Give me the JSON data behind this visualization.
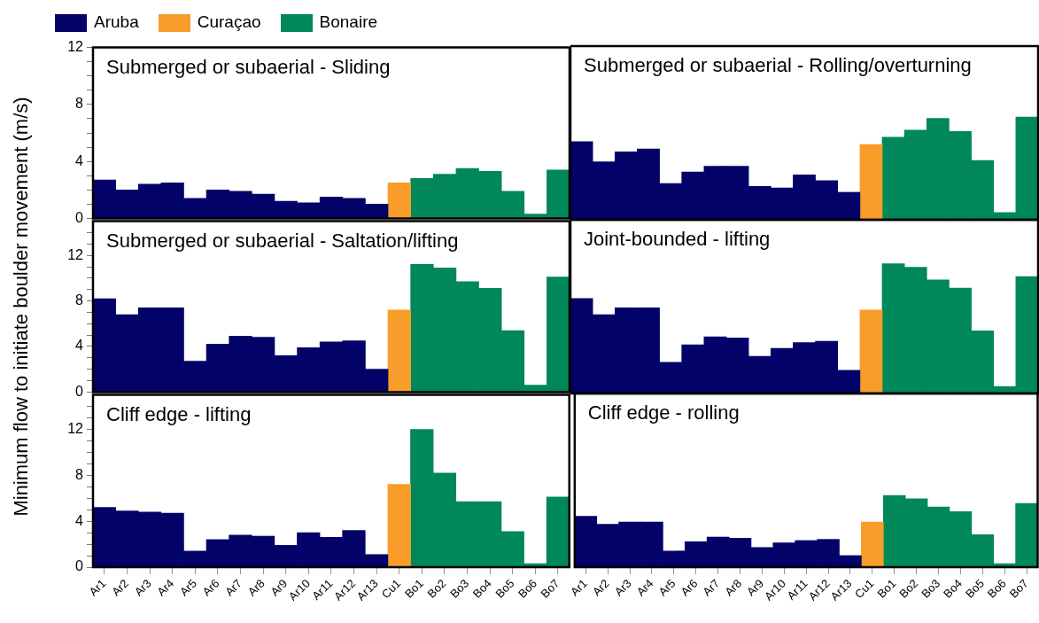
{
  "chart_data": [
    {
      "type": "bar",
      "title": "Submerged or subaerial - Sliding",
      "legend": "top left",
      "tick_labels": "y",
      "categories": [
        "Ar1",
        "Ar2",
        "Ar3",
        "Ar4",
        "Ar5",
        "Ar6",
        "Ar7",
        "Ar8",
        "Ar9",
        "Ar10",
        "Ar11",
        "Ar12",
        "Ar13",
        "Cu1",
        "Bo1",
        "Bo2",
        "Bo3",
        "Bo4",
        "Bo5",
        "Bo6",
        "Bo7"
      ],
      "ylim": [
        0,
        12
      ],
      "yticks": [
        0,
        {
          "value": 1,
          "label": null
        },
        {
          "value": 2,
          "label": null
        },
        {
          "value": 3,
          "label": null
        },
        4,
        {
          "value": 5,
          "label": null
        },
        {
          "value": 6,
          "label": null
        },
        {
          "value": 7,
          "label": null
        },
        8,
        {
          "value": 9,
          "label": null
        },
        {
          "value": 10,
          "label": null
        },
        {
          "value": 11,
          "label": null
        },
        12
      ],
      "series": [
        {
          "name": "Aruba",
          "color": "#020268",
          "values": [
            2.7,
            2.0,
            2.4,
            2.5,
            1.4,
            2.0,
            1.9,
            1.7,
            1.2,
            1.1,
            1.5,
            1.4,
            1.0,
            null,
            null,
            null,
            null,
            null,
            null,
            null,
            null
          ]
        },
        {
          "name": "Curaçao",
          "color": "#f99d2a",
          "values": [
            null,
            null,
            null,
            null,
            null,
            null,
            null,
            null,
            null,
            null,
            null,
            null,
            null,
            2.5,
            null,
            null,
            null,
            null,
            null,
            null,
            null
          ]
        },
        {
          "name": "Bonaire",
          "color": "#00875a",
          "values": [
            null,
            null,
            null,
            null,
            null,
            null,
            null,
            null,
            null,
            null,
            null,
            null,
            null,
            null,
            2.8,
            3.1,
            3.5,
            3.3,
            1.9,
            0.3,
            3.4
          ]
        }
      ]
    },
    {
      "type": "bar",
      "title": "Submerged or subaerial - Rolling/overturning",
      "tick_labels": false,
      "categories": [
        "Ar1",
        "Ar2",
        "Ar3",
        "Ar4",
        "Ar5",
        "Ar6",
        "Ar7",
        "Ar8",
        "Ar9",
        "Ar10",
        "Ar11",
        "Ar12",
        "Ar13",
        "Cu1",
        "Bo1",
        "Bo2",
        "Bo3",
        "Bo4",
        "Bo5",
        "Bo6",
        "Bo7"
      ],
      "ylim": [
        0,
        12
      ],
      "series": [
        {
          "name": "Aruba",
          "color": "#020268",
          "values": [
            5.4,
            4.0,
            4.7,
            4.9,
            2.5,
            3.3,
            3.7,
            3.7,
            2.3,
            2.2,
            3.1,
            2.7,
            1.9,
            null,
            null,
            null,
            null,
            null,
            null,
            null,
            null
          ]
        },
        {
          "name": "Curaçao",
          "color": "#f99d2a",
          "values": [
            null,
            null,
            null,
            null,
            null,
            null,
            null,
            null,
            null,
            null,
            null,
            null,
            null,
            5.2,
            null,
            null,
            null,
            null,
            null,
            null,
            null
          ]
        },
        {
          "name": "Bonaire",
          "color": "#00875a",
          "values": [
            null,
            null,
            null,
            null,
            null,
            null,
            null,
            null,
            null,
            null,
            null,
            null,
            null,
            null,
            5.7,
            6.2,
            7.0,
            6.1,
            4.1,
            0.5,
            7.1
          ]
        }
      ]
    },
    {
      "type": "bar",
      "title": "Submerged or subaerial - Saltation/lifting",
      "ylabel": "Minimum flow to initiate boulder movement (m/s)",
      "tick_labels": "y",
      "categories": [
        "Ar1",
        "Ar2",
        "Ar3",
        "Ar4",
        "Ar5",
        "Ar6",
        "Ar7",
        "Ar8",
        "Ar9",
        "Ar10",
        "Ar11",
        "Ar12",
        "Ar13",
        "Cu1",
        "Bo1",
        "Bo2",
        "Bo3",
        "Bo4",
        "Bo5",
        "Bo6",
        "Bo7"
      ],
      "ylim": [
        0,
        15
      ],
      "yticks": [
        0,
        {
          "value": 1,
          "label": null
        },
        {
          "value": 2,
          "label": null
        },
        {
          "value": 3,
          "label": null
        },
        4,
        {
          "value": 5,
          "label": null
        },
        {
          "value": 6,
          "label": null
        },
        {
          "value": 7,
          "label": null
        },
        8,
        {
          "value": 9,
          "label": null
        },
        {
          "value": 10,
          "label": null
        },
        {
          "value": 11,
          "label": null
        },
        12,
        {
          "value": 13,
          "label": null
        },
        {
          "value": 14,
          "label": null
        }
      ],
      "series": [
        {
          "name": "Aruba",
          "color": "#020268",
          "values": [
            8.2,
            6.8,
            7.4,
            7.4,
            2.7,
            4.2,
            4.9,
            4.8,
            3.2,
            3.9,
            4.4,
            4.5,
            2.0,
            null,
            null,
            null,
            null,
            null,
            null,
            null,
            null
          ]
        },
        {
          "name": "Curaçao",
          "color": "#f99d2a",
          "values": [
            null,
            null,
            null,
            null,
            null,
            null,
            null,
            null,
            null,
            null,
            null,
            null,
            null,
            7.2,
            null,
            null,
            null,
            null,
            null,
            null,
            null
          ]
        },
        {
          "name": "Bonaire",
          "color": "#00875a",
          "values": [
            null,
            null,
            null,
            null,
            null,
            null,
            null,
            null,
            null,
            null,
            null,
            null,
            null,
            null,
            11.2,
            10.9,
            9.7,
            9.1,
            5.4,
            0.6,
            10.1
          ]
        }
      ]
    },
    {
      "type": "bar",
      "title": "Joint-bounded - lifting",
      "tick_labels": false,
      "categories": [
        "Ar1",
        "Ar2",
        "Ar3",
        "Ar4",
        "Ar5",
        "Ar6",
        "Ar7",
        "Ar8",
        "Ar9",
        "Ar10",
        "Ar11",
        "Ar12",
        "Ar13",
        "Cu1",
        "Bo1",
        "Bo2",
        "Bo3",
        "Bo4",
        "Bo5",
        "Bo6",
        "Bo7"
      ],
      "ylim": [
        0,
        15
      ],
      "series": [
        {
          "name": "Aruba",
          "color": "#020268",
          "values": [
            8.2,
            6.8,
            7.4,
            7.4,
            2.7,
            4.2,
            4.9,
            4.8,
            3.2,
            3.9,
            4.4,
            4.5,
            2.0,
            null,
            null,
            null,
            null,
            null,
            null,
            null,
            null
          ]
        },
        {
          "name": "Curaçao",
          "color": "#f99d2a",
          "values": [
            null,
            null,
            null,
            null,
            null,
            null,
            null,
            null,
            null,
            null,
            null,
            null,
            null,
            7.2,
            null,
            null,
            null,
            null,
            null,
            null,
            null
          ]
        },
        {
          "name": "Bonaire",
          "color": "#00875a",
          "values": [
            null,
            null,
            null,
            null,
            null,
            null,
            null,
            null,
            null,
            null,
            null,
            null,
            null,
            null,
            11.2,
            10.9,
            9.8,
            9.1,
            5.4,
            0.6,
            10.1
          ]
        }
      ]
    },
    {
      "type": "bar",
      "title": "Cliff edge - lifting",
      "categories": [
        "Ar1",
        "Ar2",
        "Ar3",
        "Ar4",
        "Ar5",
        "Ar6",
        "Ar7",
        "Ar8",
        "Ar9",
        "Ar10",
        "Ar11",
        "Ar12",
        "Ar13",
        "Cu1",
        "Bo1",
        "Bo2",
        "Bo3",
        "Bo4",
        "Bo5",
        "Bo6",
        "Bo7"
      ],
      "ylim": [
        0,
        15
      ],
      "yticks": [
        0,
        {
          "value": 1,
          "label": null
        },
        {
          "value": 2,
          "label": null
        },
        {
          "value": 3,
          "label": null
        },
        4,
        {
          "value": 5,
          "label": null
        },
        {
          "value": 6,
          "label": null
        },
        {
          "value": 7,
          "label": null
        },
        8,
        {
          "value": 9,
          "label": null
        },
        {
          "value": 10,
          "label": null
        },
        {
          "value": 11,
          "label": null
        },
        12,
        {
          "value": 13,
          "label": null
        },
        {
          "value": 14,
          "label": null
        }
      ],
      "series": [
        {
          "name": "Aruba",
          "color": "#020268",
          "values": [
            5.2,
            4.9,
            4.8,
            4.7,
            1.4,
            2.4,
            2.8,
            2.7,
            1.9,
            3.0,
            2.6,
            3.2,
            1.1,
            null,
            null,
            null,
            null,
            null,
            null,
            null,
            null
          ]
        },
        {
          "name": "Curaçao",
          "color": "#f99d2a",
          "values": [
            null,
            null,
            null,
            null,
            null,
            null,
            null,
            null,
            null,
            null,
            null,
            null,
            null,
            7.2,
            null,
            null,
            null,
            null,
            null,
            null,
            null
          ]
        },
        {
          "name": "Bonaire",
          "color": "#00875a",
          "values": [
            null,
            null,
            null,
            null,
            null,
            null,
            null,
            null,
            null,
            null,
            null,
            null,
            null,
            null,
            12.0,
            8.2,
            5.7,
            5.7,
            3.1,
            0.3,
            6.1
          ]
        }
      ]
    },
    {
      "type": "bar",
      "title": "Cliff edge - rolling",
      "tick_labels": "x",
      "categories": [
        "Ar1",
        "Ar2",
        "Ar3",
        "Ar4",
        "Ar5",
        "Ar6",
        "Ar7",
        "Ar8",
        "Ar9",
        "Ar10",
        "Ar11",
        "Ar12",
        "Ar13",
        "Cu1",
        "Bo1",
        "Bo2",
        "Bo3",
        "Bo4",
        "Bo5",
        "Bo6",
        "Bo7"
      ],
      "ylim": [
        0,
        15
      ],
      "series": [
        {
          "name": "Aruba",
          "color": "#020268",
          "values": [
            4.4,
            3.7,
            3.9,
            3.9,
            1.4,
            2.2,
            2.6,
            2.5,
            1.7,
            2.1,
            2.3,
            2.4,
            1.0,
            null,
            null,
            null,
            null,
            null,
            null,
            null,
            null
          ]
        },
        {
          "name": "Curaçao",
          "color": "#f99d2a",
          "values": [
            null,
            null,
            null,
            null,
            null,
            null,
            null,
            null,
            null,
            null,
            null,
            null,
            null,
            3.9,
            null,
            null,
            null,
            null,
            null,
            null,
            null
          ]
        },
        {
          "name": "Bonaire",
          "color": "#00875a",
          "values": [
            null,
            null,
            null,
            null,
            null,
            null,
            null,
            null,
            null,
            null,
            null,
            null,
            null,
            null,
            6.2,
            5.9,
            5.2,
            4.8,
            2.8,
            0.3,
            5.5
          ]
        }
      ]
    }
  ]
}
